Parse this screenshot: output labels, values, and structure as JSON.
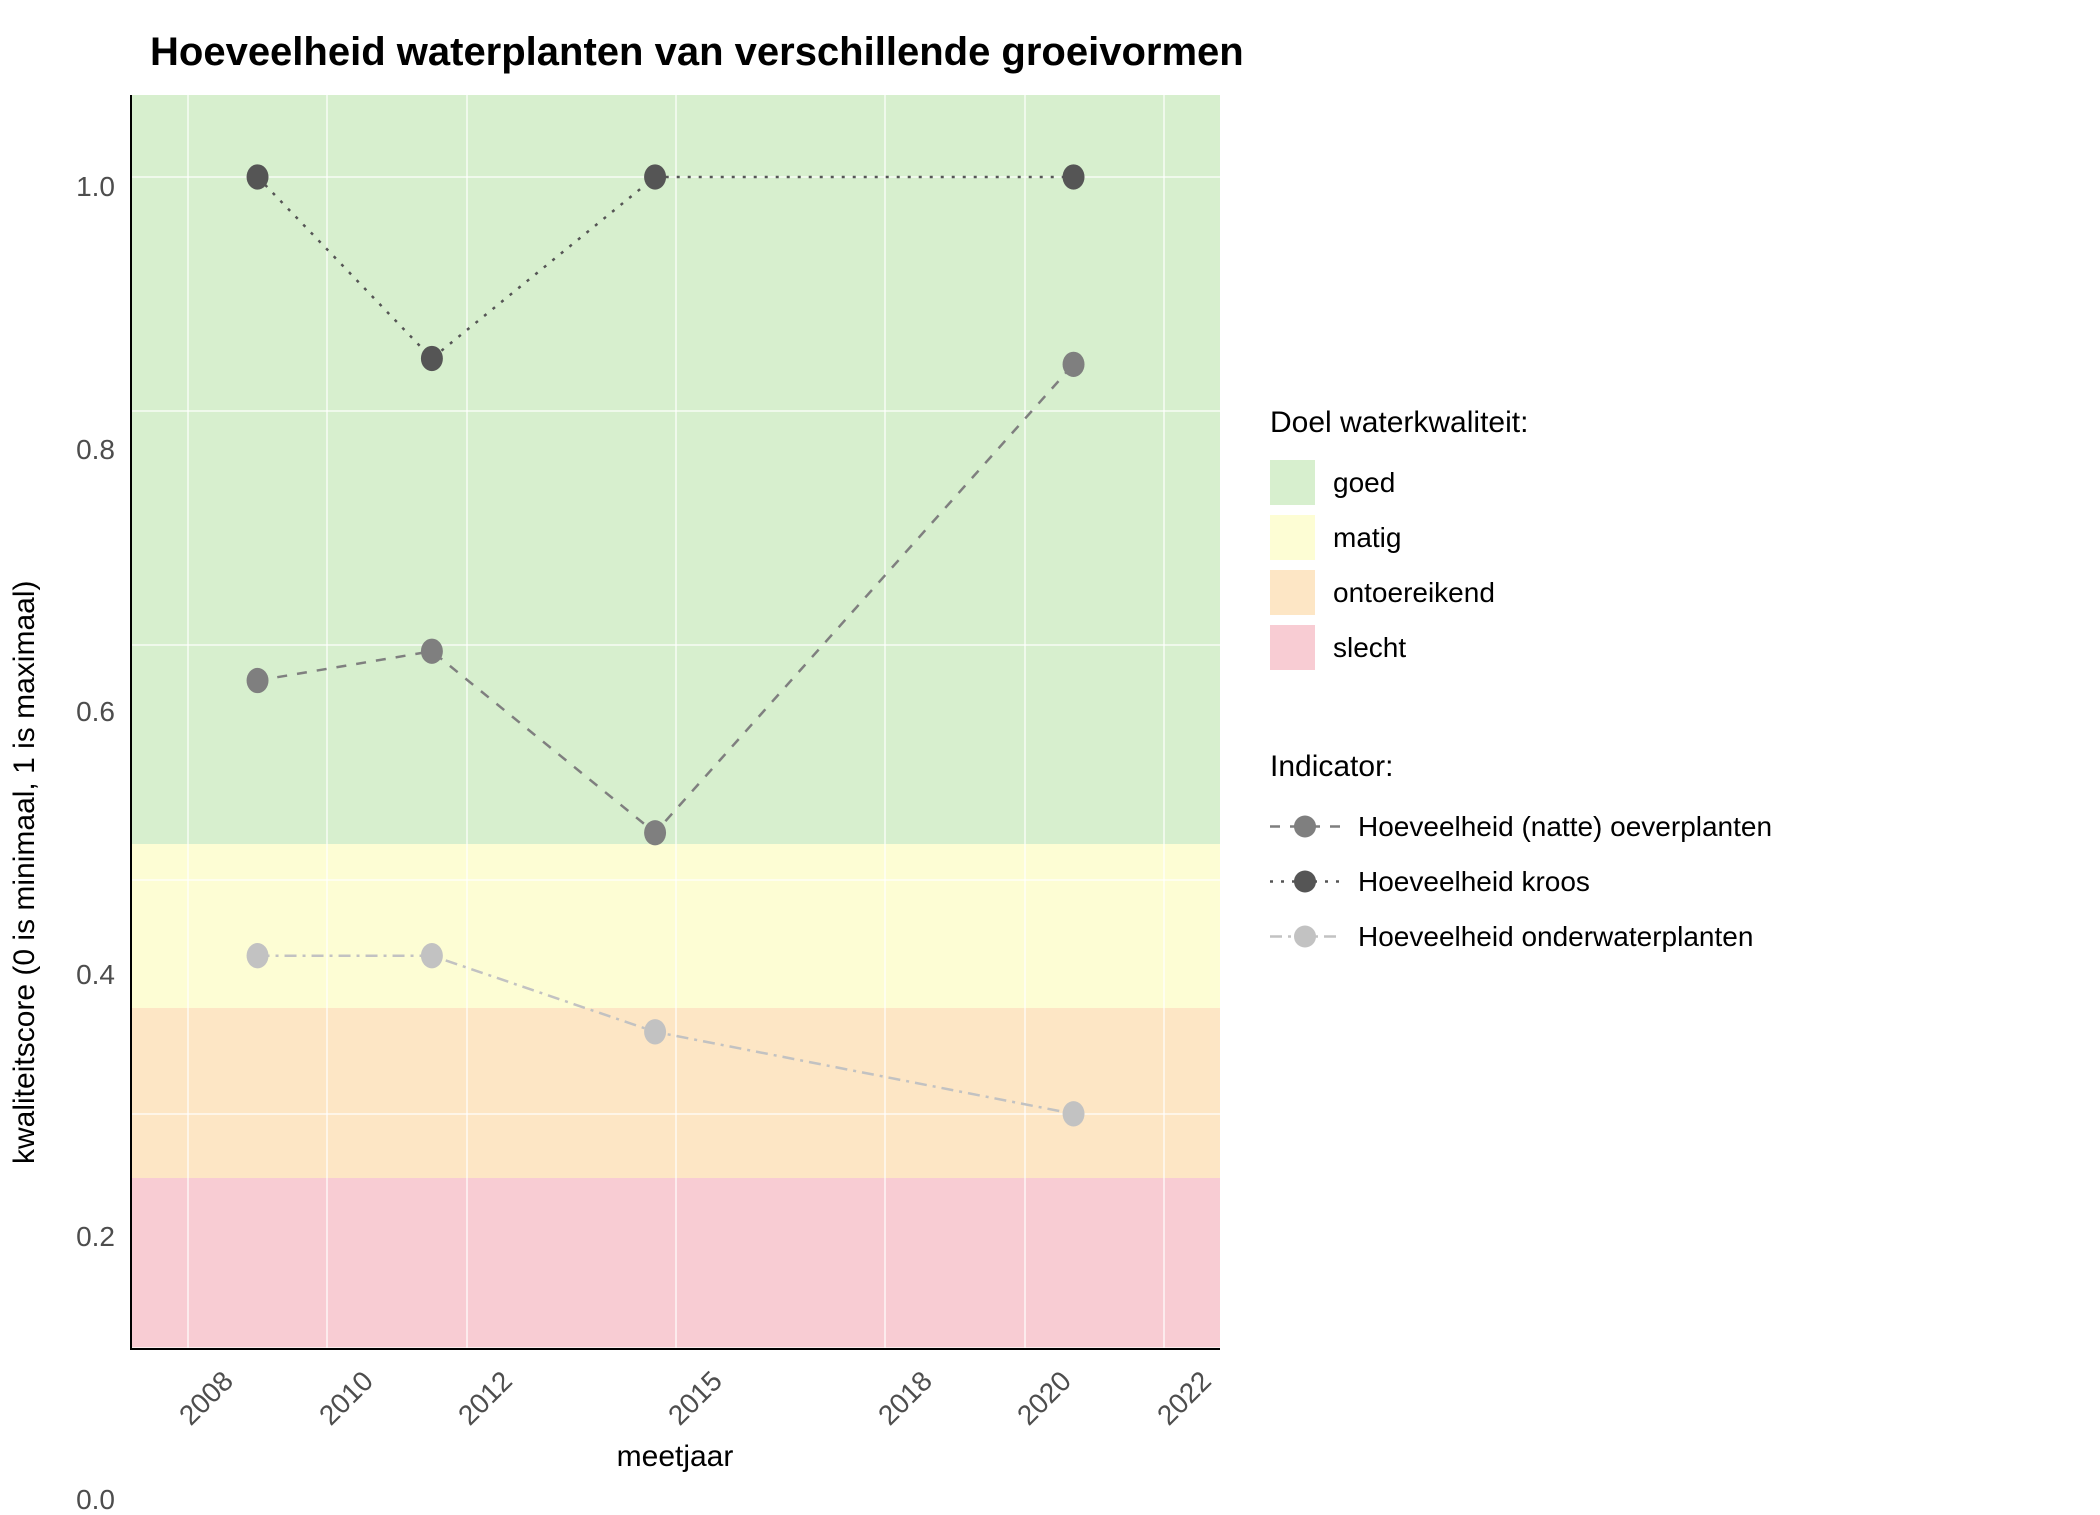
{
  "chart": {
    "title": "Hoeveelheid waterplanten van verschillende groeivormen",
    "x_label": "meetjaar",
    "y_label": "kwaliteitscore (0 is minimaal, 1 is maximaal)",
    "title_fontsize": 40,
    "label_fontsize": 30,
    "tick_fontsize": 28,
    "background_color": "#ffffff",
    "grid_color": "#ffffff",
    "x_range": [
      2007.2,
      2022.8
    ],
    "y_range": [
      0.0,
      1.07
    ],
    "x_ticks": [
      2008,
      2010,
      2012,
      2015,
      2018,
      2020,
      2022
    ],
    "y_ticks": [
      0.0,
      0.2,
      0.4,
      0.6,
      0.8,
      1.0
    ],
    "y_tick_labels": [
      "0.0",
      "0.2",
      "0.4",
      "0.6",
      "0.8",
      "1.0"
    ],
    "bands": [
      {
        "name": "goed",
        "from": 0.43,
        "to": 1.07,
        "color": "#d7efce"
      },
      {
        "name": "matig",
        "from": 0.29,
        "to": 0.43,
        "color": "#fdfdd4"
      },
      {
        "name": "ontoereikend",
        "from": 0.145,
        "to": 0.29,
        "color": "#fde6c5"
      },
      {
        "name": "slecht",
        "from": 0.0,
        "to": 0.145,
        "color": "#f8ccd3"
      }
    ],
    "series": [
      {
        "name": "Hoeveelheid (natte) oeverplanten",
        "color": "#7f7f7f",
        "marker_color": "#7f7f7f",
        "dash": "10,10",
        "line_width": 2.5,
        "marker_r": 11,
        "x": [
          2009,
          2011.5,
          2014.7,
          2020.7
        ],
        "y": [
          0.57,
          0.595,
          0.44,
          0.84
        ]
      },
      {
        "name": "Hoeveelheid kroos",
        "color": "#555555",
        "marker_color": "#555555",
        "dash": "3,8",
        "line_width": 2.5,
        "marker_r": 11,
        "x": [
          2009,
          2011.5,
          2014.7,
          2020.7
        ],
        "y": [
          1.0,
          0.845,
          1.0,
          1.0
        ]
      },
      {
        "name": "Hoeveelheid onderwaterplanten",
        "color": "#c2c2c2",
        "marker_color": "#c2c2c2",
        "dash": "12,6,3,6",
        "line_width": 2.5,
        "marker_r": 11,
        "x": [
          2009,
          2011.5,
          2014.7,
          2020.7
        ],
        "y": [
          0.335,
          0.335,
          0.27,
          0.2
        ]
      }
    ],
    "legend_quality_title": "Doel waterkwaliteit:",
    "legend_indicator_title": "Indicator:"
  }
}
